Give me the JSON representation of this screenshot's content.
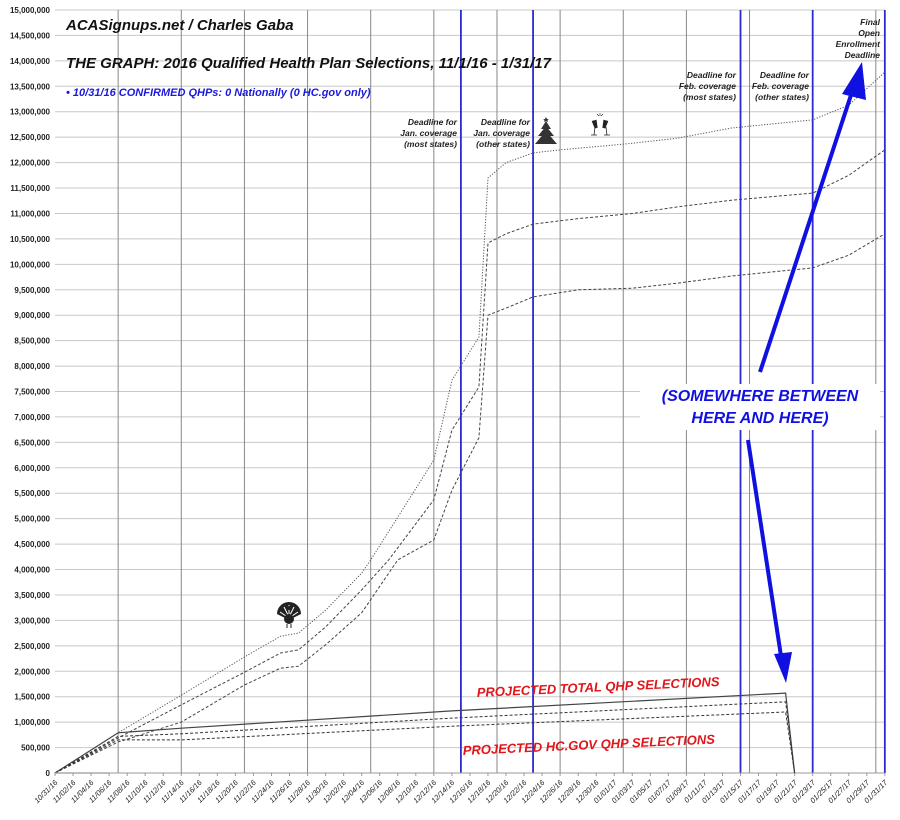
{
  "chart_data": {
    "type": "line",
    "header": "ACASignups.net / Charles Gaba",
    "title": "THE GRAPH: 2016 Qualified Health Plan Selections, 11/1/16 - 1/31/17",
    "subtitle": "• 10/31/16 CONFIRMED QHPs: 0 Nationally (0 HC.gov only)",
    "xlabel": "",
    "ylabel": "",
    "ylim": [
      0,
      15000000
    ],
    "grid": true,
    "x_tick_labels": [
      "10/31/16",
      "11/02/16",
      "11/04/16",
      "11/06/16",
      "11/08/16",
      "11/10/16",
      "11/12/16",
      "11/14/16",
      "11/16/16",
      "11/18/16",
      "11/20/16",
      "11/22/16",
      "11/24/16",
      "11/26/16",
      "11/28/16",
      "11/30/16",
      "12/02/16",
      "12/04/16",
      "12/06/16",
      "12/08/16",
      "12/10/16",
      "12/12/16",
      "12/14/16",
      "12/16/16",
      "12/18/16",
      "12/20/16",
      "12/22/16",
      "12/24/16",
      "12/26/16",
      "12/28/16",
      "12/30/16",
      "01/01/17",
      "01/03/17",
      "01/05/17",
      "01/07/17",
      "01/09/17",
      "01/11/17",
      "01/13/17",
      "01/15/17",
      "01/17/17",
      "01/19/17",
      "01/21/17",
      "01/23/17",
      "01/25/17",
      "01/27/17",
      "01/29/17",
      "01/31/17"
    ],
    "y_tick_labels": [
      "0",
      "500,000",
      "1,000,000",
      "1,500,000",
      "2,000,000",
      "2,500,000",
      "3,000,000",
      "3,500,000",
      "4,000,000",
      "4,500,000",
      "5,000,000",
      "5,500,000",
      "6,000,000",
      "6,500,000",
      "7,000,000",
      "7,500,000",
      "8,000,000",
      "8,500,000",
      "9,000,000",
      "9,500,000",
      "10,000,000",
      "10,500,000",
      "11,000,000",
      "11,500,000",
      "12,000,000",
      "12,500,000",
      "13,000,000",
      "13,500,000",
      "14,000,000",
      "14,500,000",
      "15,000,000"
    ],
    "x_start_date": "10/31/16",
    "series": [
      {
        "style": "dotted",
        "color": "#555555",
        "points": [
          [
            "10/31/16",
            0
          ],
          [
            "11/07/16",
            790000
          ],
          [
            "11/14/16",
            1530000
          ],
          [
            "11/21/16",
            2280000
          ],
          [
            "11/25/16",
            2690000
          ],
          [
            "11/27/16",
            2750000
          ],
          [
            "11/30/16",
            3200000
          ],
          [
            "12/04/16",
            3930000
          ],
          [
            "12/05/16",
            4190000
          ],
          [
            "12/12/16",
            6150000
          ],
          [
            "12/14/16",
            7720000
          ],
          [
            "12/17/16",
            8570000
          ],
          [
            "12/18/16",
            11700000
          ],
          [
            "12/20/16",
            12000000
          ],
          [
            "12/23/16",
            12190000
          ],
          [
            "12/26/16",
            12250000
          ],
          [
            "01/03/17",
            12380000
          ],
          [
            "01/08/17",
            12480000
          ],
          [
            "01/14/17",
            12680000
          ],
          [
            "01/23/17",
            12840000
          ],
          [
            "01/27/17",
            13130000
          ],
          [
            "01/31/17",
            13780000
          ]
        ]
      },
      {
        "style": "dashed",
        "color": "#444444",
        "points": [
          [
            "10/31/16",
            0
          ],
          [
            "11/07/16",
            690000
          ],
          [
            "11/14/16",
            1340000
          ],
          [
            "11/21/16",
            1980000
          ],
          [
            "11/25/16",
            2360000
          ],
          [
            "11/27/16",
            2420000
          ],
          [
            "11/30/16",
            2870000
          ],
          [
            "12/04/16",
            3600000
          ],
          [
            "12/07/16",
            4190000
          ],
          [
            "12/12/16",
            5370000
          ],
          [
            "12/14/16",
            6740000
          ],
          [
            "12/17/16",
            7590000
          ],
          [
            "12/18/16",
            10420000
          ],
          [
            "12/20/16",
            10600000
          ],
          [
            "12/23/16",
            10790000
          ],
          [
            "12/28/16",
            10900000
          ],
          [
            "01/03/17",
            11000000
          ],
          [
            "01/08/17",
            11130000
          ],
          [
            "01/14/17",
            11260000
          ],
          [
            "01/23/17",
            11400000
          ],
          [
            "01/27/17",
            11750000
          ],
          [
            "01/31/17",
            12250000
          ]
        ]
      },
      {
        "style": "dashed",
        "color": "#444444",
        "points": [
          [
            "10/31/16",
            0
          ],
          [
            "11/07/16",
            610000
          ],
          [
            "11/14/16",
            1000000
          ],
          [
            "11/21/16",
            1730000
          ],
          [
            "11/25/16",
            2060000
          ],
          [
            "11/27/16",
            2100000
          ],
          [
            "11/30/16",
            2520000
          ],
          [
            "12/04/16",
            3150000
          ],
          [
            "12/08/16",
            4190000
          ],
          [
            "12/12/16",
            4580000
          ],
          [
            "12/14/16",
            5560000
          ],
          [
            "12/17/16",
            6590000
          ],
          [
            "12/18/16",
            9000000
          ],
          [
            "12/20/16",
            9140000
          ],
          [
            "12/23/16",
            9360000
          ],
          [
            "12/28/16",
            9500000
          ],
          [
            "01/03/17",
            9530000
          ],
          [
            "01/08/17",
            9630000
          ],
          [
            "01/14/17",
            9770000
          ],
          [
            "01/23/17",
            9930000
          ],
          [
            "01/27/17",
            10180000
          ],
          [
            "01/31/17",
            10600000
          ]
        ]
      },
      {
        "style": "solid",
        "color": "#444444",
        "points": [
          [
            "10/31/16",
            0
          ],
          [
            "11/07/16",
            790000
          ],
          [
            "11/14/16",
            880000
          ],
          [
            "12/14/16",
            1220000
          ],
          [
            "01/20/17",
            1570000
          ],
          [
            "01/21/17",
            0
          ]
        ]
      },
      {
        "style": "dashed",
        "color": "#333333",
        "points": [
          [
            "10/31/16",
            0
          ],
          [
            "11/07/16",
            720000
          ],
          [
            "11/14/16",
            770000
          ],
          [
            "12/14/16",
            1080000
          ],
          [
            "01/20/17",
            1400000
          ],
          [
            "01/21/17",
            0
          ]
        ]
      },
      {
        "style": "dashed",
        "color": "#333333",
        "points": [
          [
            "10/31/16",
            0
          ],
          [
            "11/07/16",
            650000
          ],
          [
            "11/14/16",
            650000
          ],
          [
            "12/14/16",
            920000
          ],
          [
            "01/20/17",
            1200000
          ],
          [
            "01/21/17",
            0
          ]
        ]
      },
      {
        "style": "solid",
        "color": "#999999",
        "points": [
          [
            "10/31/16",
            0
          ],
          [
            "11/06/16",
            0
          ]
        ]
      }
    ],
    "deadline_lines": {
      "color": "#2a2ad0",
      "dates": [
        "12/15/16",
        "12/23/16",
        "01/15/17",
        "01/23/17",
        "01/31/17"
      ]
    },
    "annotations": {
      "jan_most": [
        "Deadline for",
        "Jan. coverage",
        "(most states)"
      ],
      "jan_other": [
        "Deadline for",
        "Jan. coverage",
        "(other states)"
      ],
      "feb_most": [
        "Deadline for",
        "Feb. coverage",
        "(most states)"
      ],
      "feb_other": [
        "Deadline for",
        "Feb. coverage",
        "(other states)"
      ],
      "final": [
        "Final",
        "Open",
        "Enrollment",
        "Deadline"
      ],
      "somewhere": [
        "(SOMEWHERE BETWEEN",
        "HERE AND HERE)"
      ],
      "projected_total": "PROJECTED TOTAL QHP SELECTIONS",
      "projected_hcgov": "PROJECTED HC.GOV QHP SELECTIONS",
      "icons": [
        "turkey-icon",
        "christmas-tree-icon",
        "champagne-toast-icon"
      ]
    },
    "colors": {
      "accent_blue": "#1010e0",
      "red": "#e0161b",
      "grid": "#bbbbbb"
    }
  }
}
